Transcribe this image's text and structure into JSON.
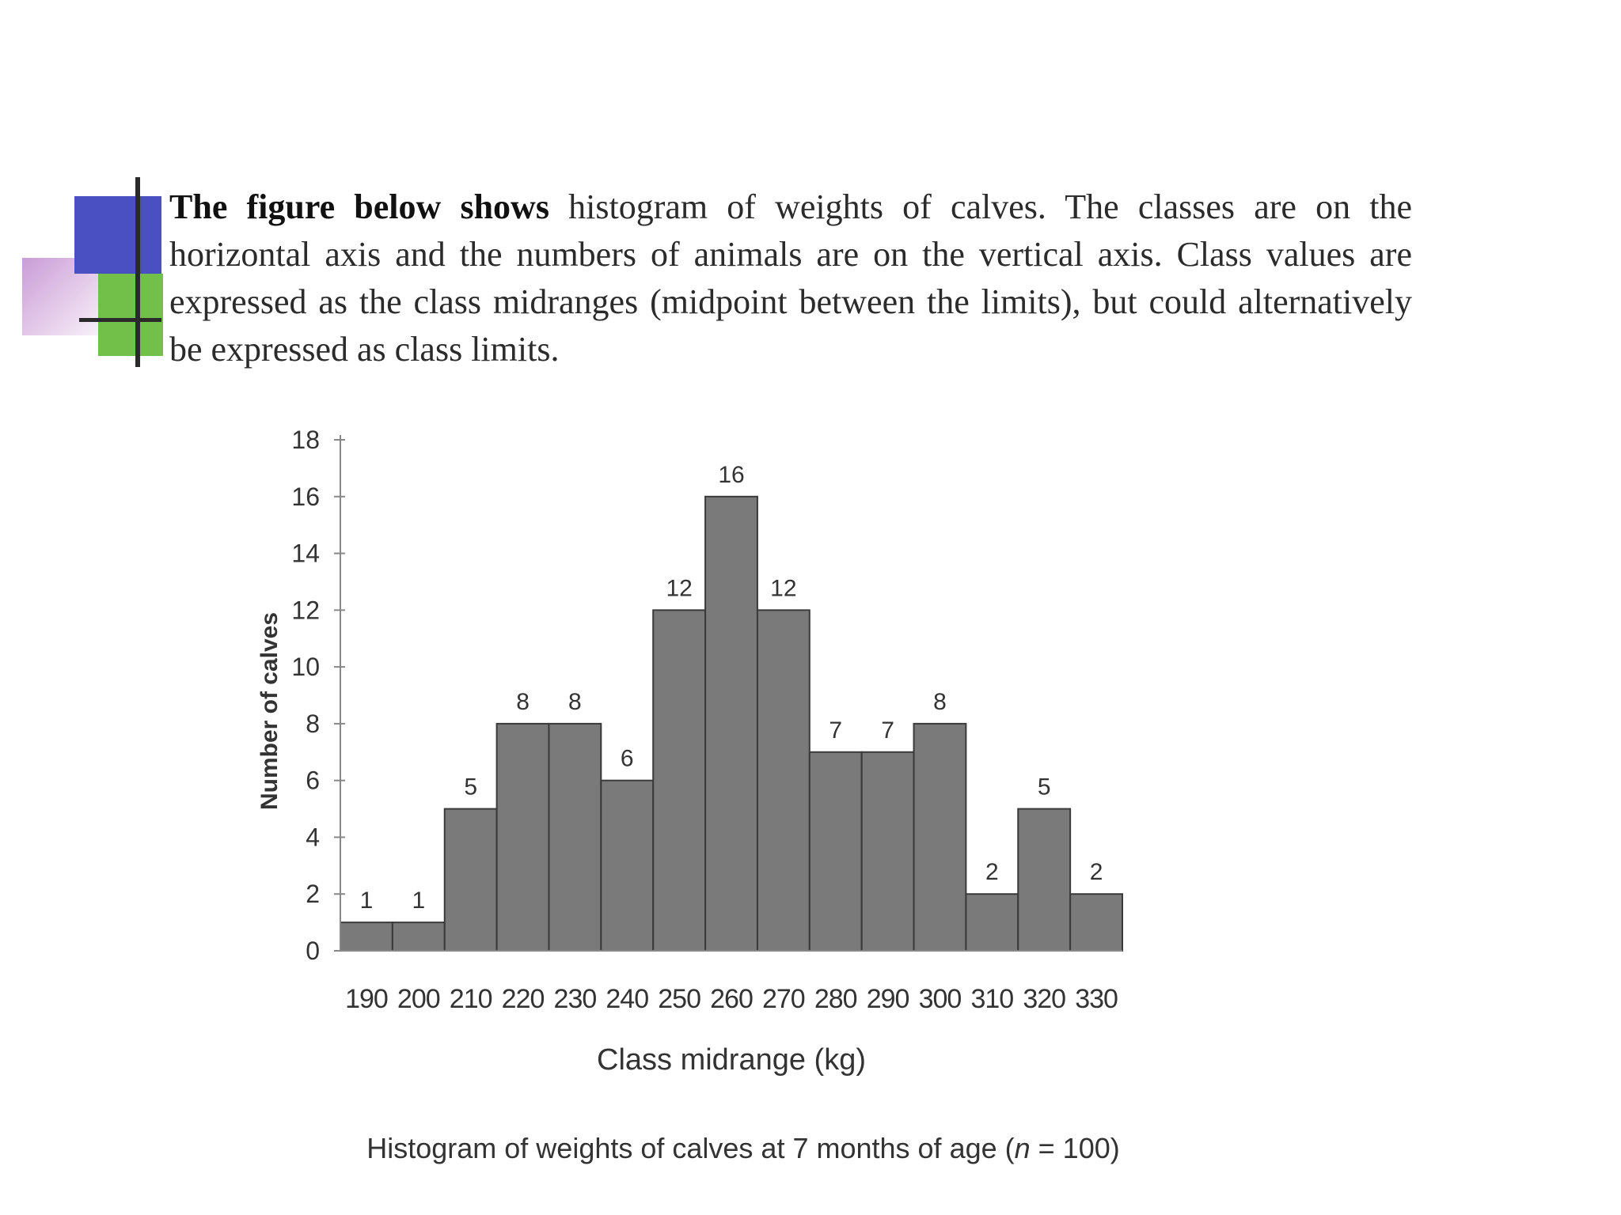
{
  "intro": {
    "bold": "The figure below shows",
    "text": " histogram of weights of calves. The classes are on the horizontal axis and the numbers of animals are on the vertical axis. Class values are expressed as the class midranges (midpoint between the limits), but could alternatively be expressed as class limits."
  },
  "chart_data": {
    "type": "bar",
    "categories": [
      "190",
      "200",
      "210",
      "220",
      "230",
      "240",
      "250",
      "260",
      "270",
      "280",
      "290",
      "300",
      "310",
      "320",
      "330"
    ],
    "values": [
      1,
      1,
      5,
      8,
      8,
      6,
      12,
      16,
      12,
      7,
      7,
      8,
      2,
      5,
      2
    ],
    "xlabel": "Class midrange (kg)",
    "ylabel": "Number of calves",
    "caption_main": "Histogram of weights of calves at 7 months of age (",
    "caption_italic": "n",
    "caption_tail": " = 100)",
    "ylim": [
      0,
      18
    ],
    "yticks": [
      0,
      2,
      4,
      6,
      8,
      10,
      12,
      14,
      16,
      18
    ],
    "bar_color": "#7a7a7a",
    "grid": false,
    "legend": "none"
  }
}
